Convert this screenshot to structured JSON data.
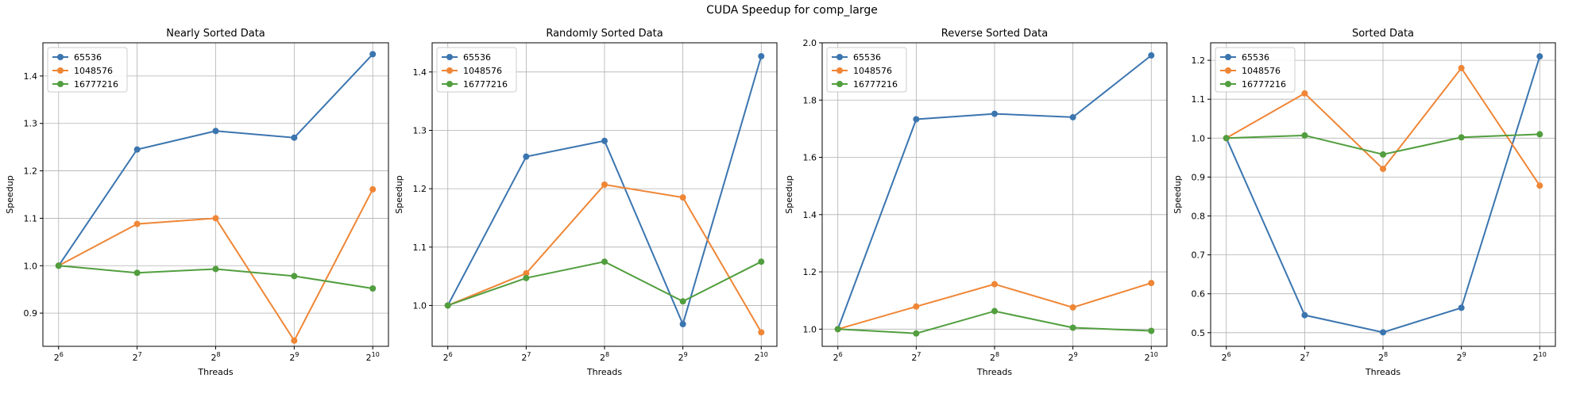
{
  "figure": {
    "title": "CUDA Speedup for comp_large"
  },
  "colors": {
    "65536": "#3b75af",
    "1048576": "#ef8636",
    "16777216": "#519e3e",
    "grid": "#b0b0b0"
  },
  "chart_data": [
    {
      "type": "line",
      "title": "Nearly Sorted Data",
      "xlabel": "Threads",
      "ylabel": "Speedup",
      "x": [
        6,
        7,
        8,
        9,
        10
      ],
      "x_tick_labels": [
        "2^6",
        "2^7",
        "2^8",
        "2^9",
        "2^10"
      ],
      "ylim": [
        0.83,
        1.47
      ],
      "y_ticks": [
        0.9,
        1.0,
        1.1,
        1.2,
        1.3,
        1.4
      ],
      "grid": true,
      "legend": "upper-left",
      "series": [
        {
          "name": "65536",
          "values": [
            1.0,
            1.245,
            1.284,
            1.27,
            1.446
          ]
        },
        {
          "name": "1048576",
          "values": [
            1.0,
            1.088,
            1.1,
            0.842,
            1.161
          ]
        },
        {
          "name": "16777216",
          "values": [
            1.0,
            0.985,
            0.993,
            0.978,
            0.952
          ]
        }
      ]
    },
    {
      "type": "line",
      "title": "Randomly Sorted Data",
      "xlabel": "Threads",
      "ylabel": "Speedup",
      "x": [
        6,
        7,
        8,
        9,
        10
      ],
      "x_tick_labels": [
        "2^6",
        "2^7",
        "2^8",
        "2^9",
        "2^10"
      ],
      "ylim": [
        0.93,
        1.45
      ],
      "y_ticks": [
        1.0,
        1.1,
        1.2,
        1.3,
        1.4
      ],
      "grid": true,
      "legend": "upper-left",
      "series": [
        {
          "name": "65536",
          "values": [
            1.0,
            1.255,
            1.282,
            0.968,
            1.427
          ]
        },
        {
          "name": "1048576",
          "values": [
            1.0,
            1.055,
            1.207,
            1.185,
            0.954
          ]
        },
        {
          "name": "16777216",
          "values": [
            1.0,
            1.047,
            1.075,
            1.007,
            1.075
          ]
        }
      ]
    },
    {
      "type": "line",
      "title": "Reverse Sorted Data",
      "xlabel": "Threads",
      "ylabel": "Speedup",
      "x": [
        6,
        7,
        8,
        9,
        10
      ],
      "x_tick_labels": [
        "2^6",
        "2^7",
        "2^8",
        "2^9",
        "2^10"
      ],
      "ylim": [
        0.94,
        2.0
      ],
      "y_ticks": [
        1.0,
        1.2,
        1.4,
        1.6,
        1.8,
        2.0
      ],
      "grid": true,
      "legend": "upper-left",
      "series": [
        {
          "name": "65536",
          "values": [
            1.0,
            1.733,
            1.752,
            1.74,
            1.956
          ]
        },
        {
          "name": "1048576",
          "values": [
            1.0,
            1.079,
            1.157,
            1.076,
            1.161
          ]
        },
        {
          "name": "16777216",
          "values": [
            1.0,
            0.985,
            1.063,
            1.005,
            0.994
          ]
        }
      ]
    },
    {
      "type": "line",
      "title": "Sorted Data",
      "xlabel": "Threads",
      "ylabel": "Speedup",
      "x": [
        6,
        7,
        8,
        9,
        10
      ],
      "x_tick_labels": [
        "2^6",
        "2^7",
        "2^8",
        "2^9",
        "2^10"
      ],
      "ylim": [
        0.465,
        1.245
      ],
      "y_ticks": [
        0.5,
        0.6,
        0.7,
        0.8,
        0.9,
        1.0,
        1.1,
        1.2
      ],
      "grid": true,
      "legend": "upper-left",
      "series": [
        {
          "name": "65536",
          "values": [
            1.0,
            0.545,
            0.501,
            0.564,
            1.21
          ]
        },
        {
          "name": "1048576",
          "values": [
            1.0,
            1.115,
            0.921,
            1.18,
            0.878
          ]
        },
        {
          "name": "16777216",
          "values": [
            1.0,
            1.007,
            0.958,
            1.002,
            1.01
          ]
        }
      ]
    }
  ]
}
